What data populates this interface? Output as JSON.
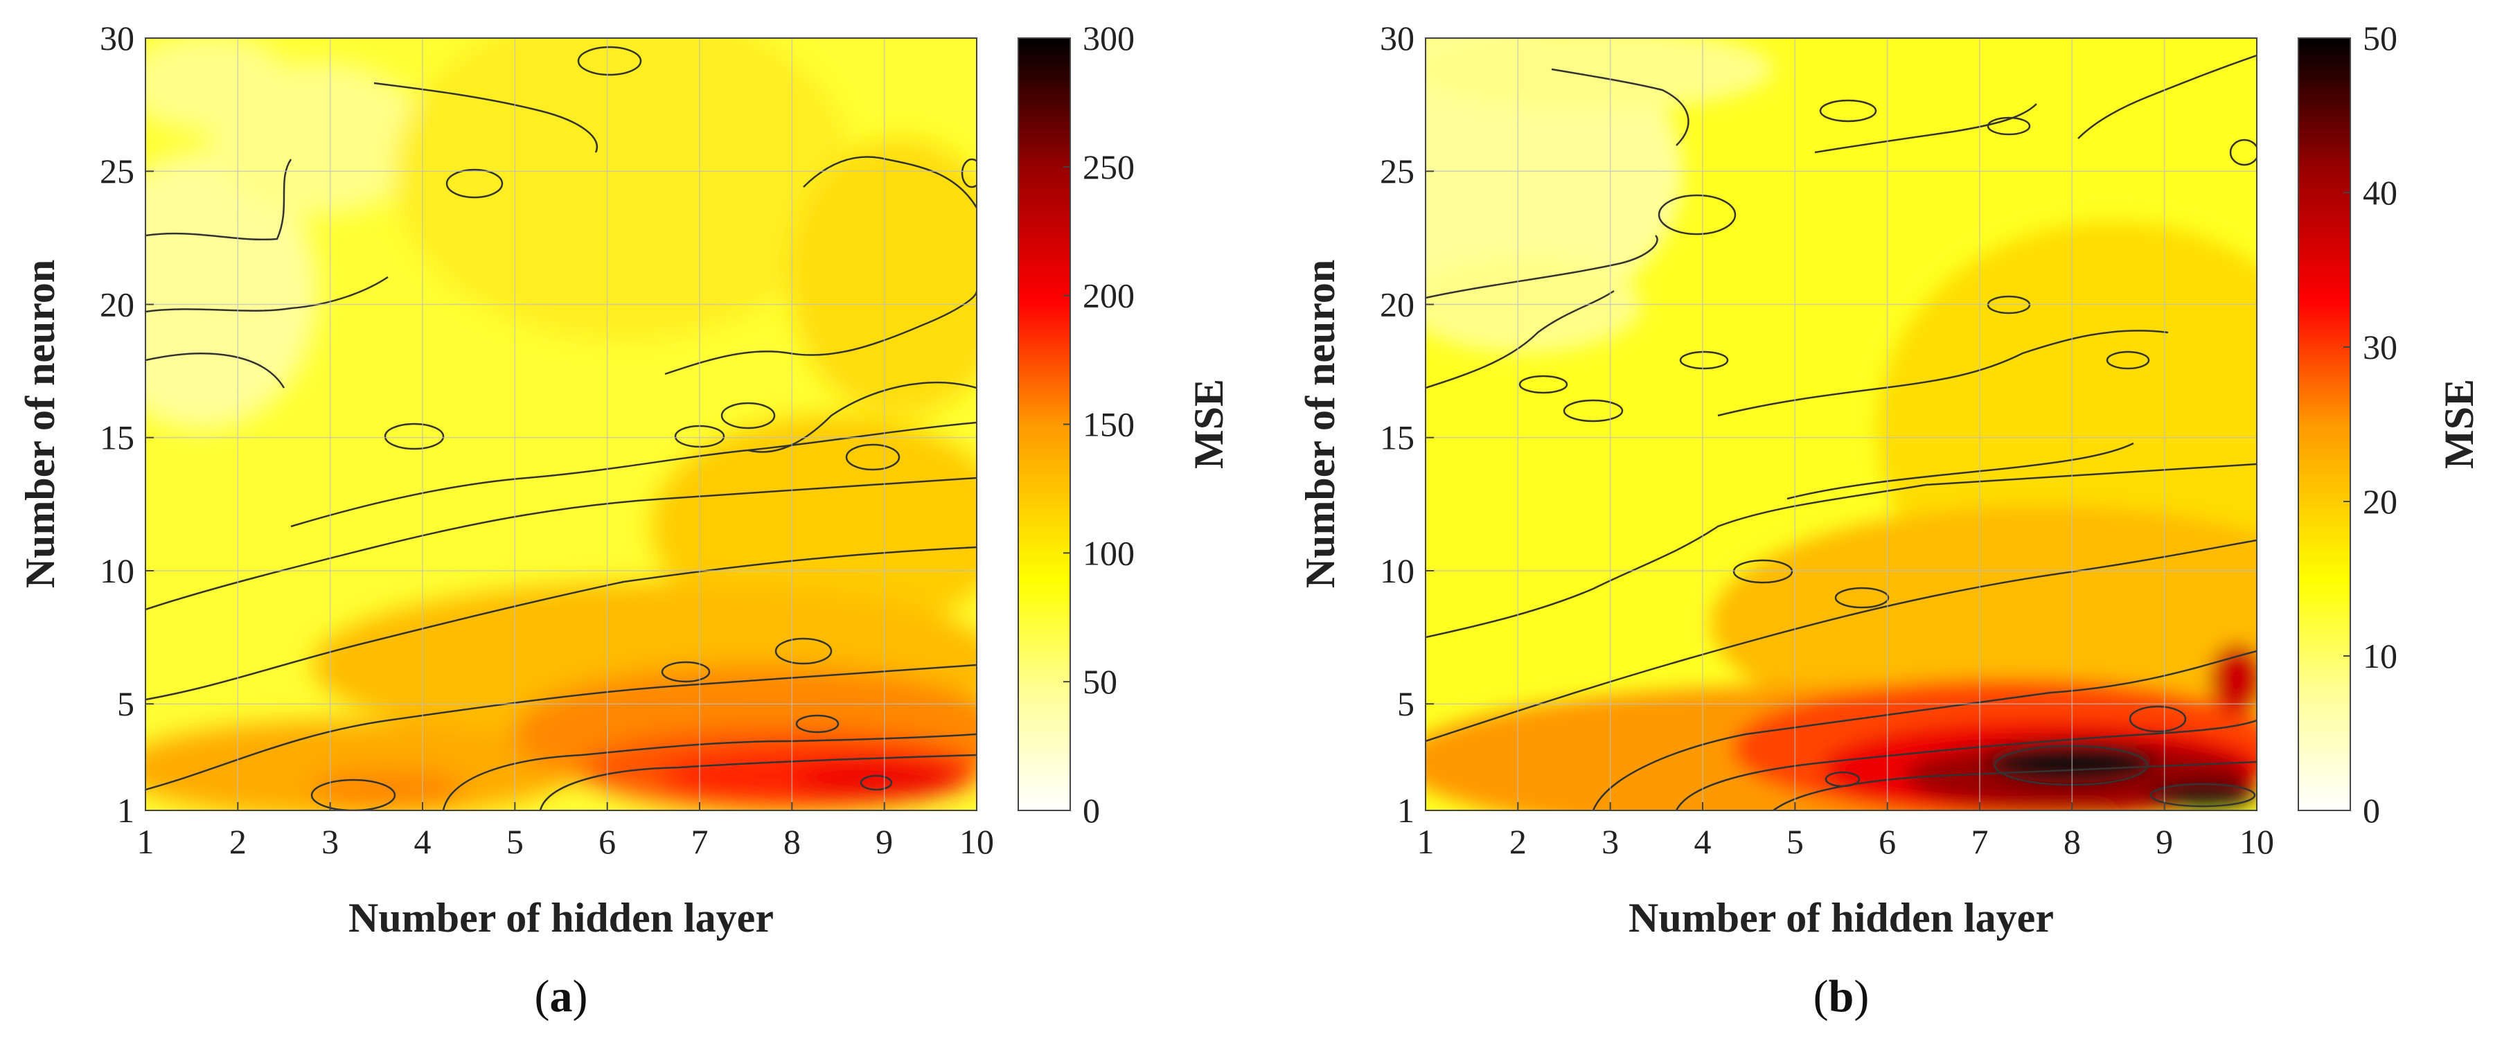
{
  "chart_data": [
    {
      "type": "heatmap",
      "panel_label": "a",
      "xlabel": "Number of hidden layer",
      "ylabel": "Number of neuron",
      "colorbar_label": "MSE",
      "x_ticks": [
        1,
        2,
        3,
        4,
        5,
        6,
        7,
        8,
        9,
        10
      ],
      "y_ticks": [
        1,
        5,
        10,
        15,
        20,
        25,
        30
      ],
      "xlim": [
        1,
        10
      ],
      "ylim": [
        1,
        30
      ],
      "colorbar_ticks": [
        0,
        50,
        100,
        150,
        200,
        250,
        300
      ],
      "clim": [
        0,
        300
      ],
      "colormap": "hot-reversed",
      "grid": true,
      "z_peak_estimate": 230,
      "z_background_estimate": 60
    },
    {
      "type": "heatmap",
      "panel_label": "b",
      "xlabel": "Number of hidden layer",
      "ylabel": "Number of neuron",
      "colorbar_label": "MSE",
      "x_ticks": [
        1,
        2,
        3,
        4,
        5,
        6,
        7,
        8,
        9,
        10
      ],
      "y_ticks": [
        1,
        5,
        10,
        15,
        20,
        25,
        30
      ],
      "xlim": [
        1,
        10
      ],
      "ylim": [
        1,
        30
      ],
      "colorbar_ticks": [
        0,
        10,
        20,
        30,
        40,
        50
      ],
      "clim": [
        0,
        50
      ],
      "colormap": "hot-reversed",
      "grid": true,
      "z_peak_estimate": 50,
      "z_background_estimate": 12
    }
  ],
  "colors": {
    "low": "#ffffff",
    "mid_low": "#ffff00",
    "mid": "#ff8c00",
    "mid_high": "#ff0000",
    "high": "#000000",
    "contour": "#333333",
    "grid": "#bdbdbd"
  }
}
